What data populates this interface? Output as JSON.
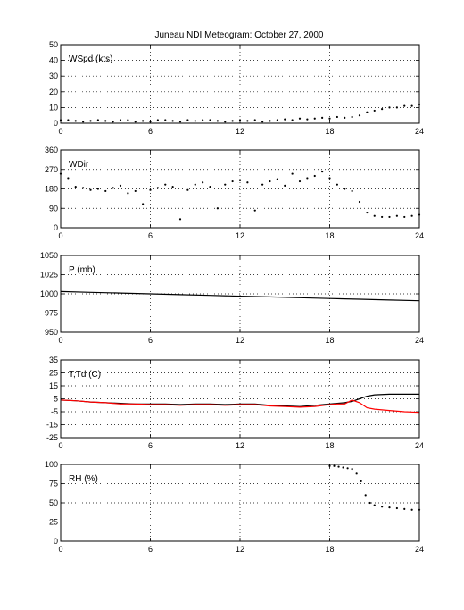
{
  "figure": {
    "title": "Juneau NDI Meteogram:    October 27, 2000"
  },
  "chart_data": [
    {
      "type": "scatter",
      "label": "WSpd (kts)",
      "xlim": [
        0,
        24
      ],
      "ylim": [
        0,
        50
      ],
      "x_ticks": [
        "0",
        "6",
        "12",
        "18",
        "24"
      ],
      "y_ticks": [
        "0",
        "10",
        "20",
        "30",
        "40",
        "50"
      ],
      "grid": true,
      "series": [
        {
          "color": "#000000",
          "x": [
            0,
            0.5,
            1,
            1.5,
            2,
            2.5,
            3,
            3.5,
            4,
            4.5,
            5,
            5.5,
            6,
            6.5,
            7,
            7.5,
            8,
            8.5,
            9,
            9.5,
            10,
            10.5,
            11,
            11.5,
            12,
            12.5,
            13,
            13.5,
            14,
            14.5,
            15,
            15.5,
            16,
            16.5,
            17,
            17.5,
            18,
            18.5,
            19,
            19.5,
            20,
            20.5,
            21,
            21.5,
            22,
            22.5,
            23,
            23.5,
            24
          ],
          "y": [
            2,
            2,
            1.5,
            1,
            1.5,
            2,
            1.5,
            1,
            2,
            2,
            1,
            1.5,
            1,
            2,
            2,
            1.5,
            1,
            2,
            1.5,
            2,
            2,
            1.5,
            1,
            1.5,
            2,
            1.5,
            2,
            1,
            1.5,
            2,
            2.5,
            2,
            3,
            2.5,
            3,
            3.5,
            3,
            4,
            3.5,
            4,
            5,
            7,
            8,
            9,
            10,
            10,
            11,
            11,
            12
          ]
        }
      ]
    },
    {
      "type": "scatter",
      "label": "WDir",
      "xlim": [
        0,
        24
      ],
      "ylim": [
        0,
        360
      ],
      "x_ticks": [
        "0",
        "6",
        "12",
        "18",
        "24"
      ],
      "y_ticks": [
        "0",
        "90",
        "180",
        "270",
        "360"
      ],
      "grid": true,
      "series": [
        {
          "color": "#000000",
          "x": [
            0,
            0.5,
            1,
            1.5,
            2,
            2.5,
            3,
            3.5,
            4,
            4.5,
            5,
            5.5,
            6,
            6.5,
            7,
            7.5,
            8,
            8.5,
            9,
            9.5,
            10,
            10.5,
            11,
            11.5,
            12,
            12.5,
            13,
            13.5,
            14,
            14.5,
            15,
            15.5,
            16,
            16.5,
            17,
            17.5,
            18,
            18.5,
            19,
            19.5,
            20,
            20.5,
            21,
            21.5,
            22,
            22.5,
            23,
            23.5,
            24
          ],
          "y": [
            250,
            230,
            190,
            185,
            175,
            180,
            170,
            185,
            195,
            160,
            170,
            110,
            175,
            185,
            200,
            190,
            40,
            175,
            200,
            210,
            190,
            90,
            200,
            215,
            220,
            210,
            80,
            200,
            215,
            225,
            195,
            250,
            215,
            230,
            240,
            260,
            230,
            200,
            180,
            170,
            120,
            70,
            55,
            50,
            50,
            55,
            50,
            55,
            60
          ]
        }
      ]
    },
    {
      "type": "line",
      "label": "P (mb)",
      "xlim": [
        0,
        24
      ],
      "ylim": [
        950,
        1050
      ],
      "x_ticks": [
        "0",
        "6",
        "12",
        "18",
        "24"
      ],
      "y_ticks": [
        "950",
        "975",
        "1000",
        "1025",
        "1050"
      ],
      "grid": true,
      "series": [
        {
          "color": "#000000",
          "x": [
            0,
            2,
            4,
            6,
            8,
            10,
            12,
            14,
            16,
            18,
            20,
            22,
            24
          ],
          "y": [
            1003,
            1002,
            1001,
            1000,
            999,
            998,
            997,
            996,
            995,
            994,
            993,
            992,
            991
          ]
        }
      ]
    },
    {
      "type": "line",
      "label": "T,Td (C)",
      "xlim": [
        0,
        24
      ],
      "ylim": [
        -25,
        35
      ],
      "x_ticks": [
        "0",
        "6",
        "12",
        "18",
        "24"
      ],
      "y_ticks": [
        "-25",
        "-15",
        "-5",
        "5",
        "15",
        "25",
        "35"
      ],
      "grid": true,
      "series": [
        {
          "color": "#000000",
          "x": [
            0,
            1,
            2,
            3,
            4,
            5,
            6,
            7,
            8,
            9,
            10,
            11,
            12,
            13,
            14,
            15,
            16,
            17,
            18,
            18.5,
            19,
            19.5,
            20,
            20.5,
            21,
            22,
            23,
            24
          ],
          "y": [
            4,
            3.5,
            2.5,
            2,
            1.5,
            1,
            1,
            1,
            0.5,
            1,
            1,
            0.5,
            1,
            1,
            0,
            -0.5,
            -1,
            0,
            1,
            1.5,
            2,
            3,
            5,
            7,
            8,
            8.5,
            8.5,
            8.5
          ]
        },
        {
          "color": "#ff0000",
          "x": [
            0,
            1,
            2,
            3,
            4,
            5,
            6,
            7,
            8,
            9,
            10,
            11,
            12,
            13,
            14,
            15,
            16,
            17,
            18,
            18.5,
            19,
            19.5,
            20,
            20.5,
            21,
            22,
            23,
            24
          ],
          "y": [
            4,
            3.5,
            2.5,
            2,
            1,
            1,
            0.5,
            0.5,
            0,
            0.5,
            0.5,
            0,
            0.5,
            0.5,
            -0.5,
            -1,
            -1.5,
            -1,
            0.5,
            1,
            1,
            4,
            2,
            -2,
            -3,
            -4,
            -5,
            -5.5
          ]
        }
      ]
    },
    {
      "type": "scatter",
      "label": "RH (%)",
      "xlim": [
        0,
        24
      ],
      "ylim": [
        0,
        100
      ],
      "x_ticks": [
        "0",
        "6",
        "12",
        "18",
        "24"
      ],
      "y_ticks": [
        "0",
        "25",
        "50",
        "75",
        "100"
      ],
      "grid": true,
      "series": [
        {
          "color": "#000000",
          "x": [
            18,
            18.3,
            18.6,
            18.9,
            19.2,
            19.5,
            19.8,
            20.1,
            20.4,
            20.7,
            21,
            21.5,
            22,
            22.5,
            23,
            23.5,
            24
          ],
          "y": [
            98,
            98,
            97,
            96,
            95,
            94,
            88,
            78,
            60,
            50,
            47,
            45,
            44,
            43,
            42,
            41,
            41
          ]
        }
      ]
    }
  ]
}
